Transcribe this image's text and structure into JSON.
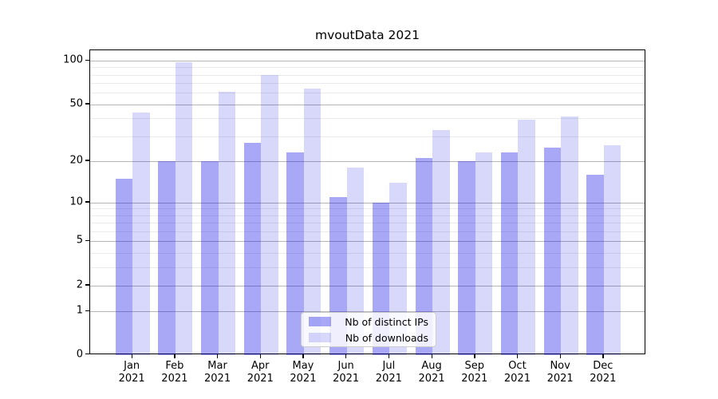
{
  "chart_data": {
    "type": "bar",
    "title": "mvoutData 2021",
    "categories": [
      "Jan 2021",
      "Feb 2021",
      "Mar 2021",
      "Apr 2021",
      "May 2021",
      "Jun 2021",
      "Jul 2021",
      "Aug 2021",
      "Sep 2021",
      "Oct 2021",
      "Nov 2021",
      "Dec 2021"
    ],
    "series": [
      {
        "name": "Nb of distinct IPs",
        "color": "rgba(15,15,230,0.36)",
        "values": [
          15,
          20,
          20,
          27,
          23,
          11,
          10,
          21,
          20,
          23,
          25,
          16
        ]
      },
      {
        "name": "Nb of downloads",
        "color": "rgba(15,15,230,0.16)",
        "values": [
          44,
          97,
          61,
          80,
          64,
          18,
          14,
          33,
          23,
          39,
          41,
          26
        ]
      }
    ],
    "xlabel": "",
    "ylabel": "",
    "yscale": "log1p",
    "yticks_major": [
      0,
      1,
      2,
      5,
      10,
      20,
      50,
      100
    ],
    "yticks_minor": [
      3,
      4,
      6,
      7,
      8,
      9,
      30,
      40,
      60,
      70,
      80,
      90
    ],
    "ylim": [
      0,
      116
    ],
    "grid": true,
    "legend_position": "lower center"
  },
  "colors": {
    "grid_major": "#b6b6b6",
    "grid_minor": "#ebebeb",
    "spine": "#000000",
    "background": "#ffffff",
    "text": "#000000"
  }
}
